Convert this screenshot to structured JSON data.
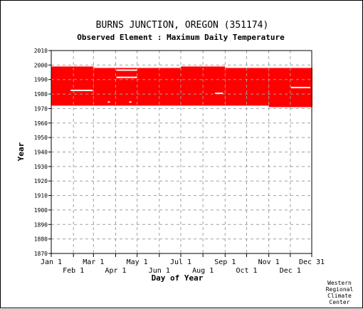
{
  "chart_data": {
    "type": "bar",
    "title": "BURNS JUNCTION, OREGON   (351174)",
    "subtitle": "Observed Element : Maximum Daily Temperature",
    "xlabel": "Day of Year",
    "ylabel": "Year",
    "xlim": [
      1,
      365
    ],
    "ylim": [
      1870,
      2010
    ],
    "y_ticks": [
      1870,
      1880,
      1890,
      1900,
      1910,
      1920,
      1930,
      1940,
      1950,
      1960,
      1970,
      1980,
      1990,
      2000,
      2010
    ],
    "x_ticks_top": [
      {
        "label": "Jan 1",
        "day": 1
      },
      {
        "label": "Mar 1",
        "day": 60
      },
      {
        "label": "May 1",
        "day": 121
      },
      {
        "label": "Jul 1",
        "day": 182
      },
      {
        "label": "Sep 1",
        "day": 244
      },
      {
        "label": "Nov 1",
        "day": 305
      },
      {
        "label": "Dec 31",
        "day": 365
      }
    ],
    "x_ticks_bottom": [
      {
        "label": "Feb 1",
        "day": 32
      },
      {
        "label": "Apr 1",
        "day": 91
      },
      {
        "label": "Jun 1",
        "day": 152
      },
      {
        "label": "Aug 1",
        "day": 213
      },
      {
        "label": "Oct 1",
        "day": 274
      },
      {
        "label": "Dec 1",
        "day": 335
      }
    ],
    "grid": true,
    "data_color": "#ff0000",
    "coverage": [
      {
        "start_day": 1,
        "end_day": 59,
        "start_year": 1972,
        "end_year": 1998
      },
      {
        "start_day": 60,
        "end_day": 181,
        "start_year": 1972,
        "end_year": 1997
      },
      {
        "start_day": 182,
        "end_day": 243,
        "start_year": 1972,
        "end_year": 1998
      },
      {
        "start_day": 244,
        "end_day": 304,
        "start_year": 1972,
        "end_year": 1997
      },
      {
        "start_day": 305,
        "end_day": 365,
        "start_year": 1971,
        "end_year": 1997
      }
    ],
    "missing_segments": [
      {
        "start_day": 28,
        "end_day": 58,
        "year": 1982
      },
      {
        "start_day": 92,
        "end_day": 120,
        "year": 1996
      },
      {
        "start_day": 92,
        "end_day": 120,
        "year": 1991
      },
      {
        "start_day": 336,
        "end_day": 362,
        "year": 1984
      },
      {
        "start_day": 230,
        "end_day": 240,
        "year": 1980
      },
      {
        "start_day": 110,
        "end_day": 112,
        "year": 1974
      },
      {
        "start_day": 80,
        "end_day": 82,
        "year": 1974
      }
    ]
  },
  "credit": [
    "Western",
    "Regional",
    "Climate",
    "Center"
  ]
}
